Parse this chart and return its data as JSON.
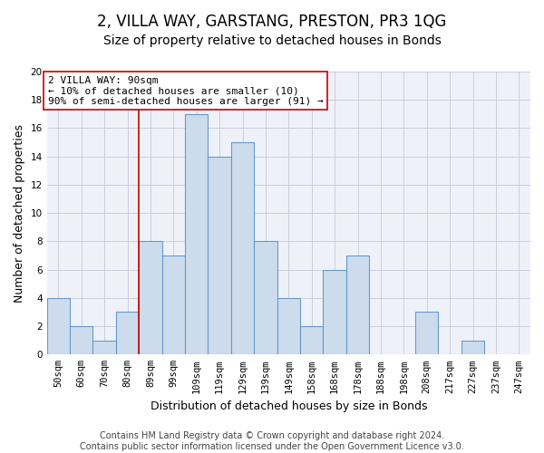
{
  "title": "2, VILLA WAY, GARSTANG, PRESTON, PR3 1QG",
  "subtitle": "Size of property relative to detached houses in Bonds",
  "xlabel": "Distribution of detached houses by size in Bonds",
  "ylabel": "Number of detached properties",
  "footer_line1": "Contains HM Land Registry data © Crown copyright and database right 2024.",
  "footer_line2": "Contains public sector information licensed under the Open Government Licence v3.0.",
  "bar_labels": [
    "50sqm",
    "60sqm",
    "70sqm",
    "80sqm",
    "89sqm",
    "99sqm",
    "109sqm",
    "119sqm",
    "129sqm",
    "139sqm",
    "149sqm",
    "158sqm",
    "168sqm",
    "178sqm",
    "188sqm",
    "198sqm",
    "208sqm",
    "217sqm",
    "227sqm",
    "237sqm",
    "247sqm"
  ],
  "bar_values": [
    4,
    2,
    1,
    3,
    8,
    7,
    17,
    14,
    15,
    8,
    4,
    2,
    6,
    7,
    0,
    0,
    3,
    0,
    1,
    0,
    0
  ],
  "bar_color": "#ccdcec",
  "bar_edge_color": "#6699cc",
  "bar_edge_width": 0.8,
  "vline_x_index": 4,
  "vline_color": "#cc0000",
  "vline_linewidth": 1.2,
  "annotation_text_line1": "2 VILLA WAY: 90sqm",
  "annotation_text_line2": "← 10% of detached houses are smaller (10)",
  "annotation_text_line3": "90% of semi-detached houses are larger (91) →",
  "ylim": [
    0,
    20
  ],
  "yticks": [
    0,
    2,
    4,
    6,
    8,
    10,
    12,
    14,
    16,
    18,
    20
  ],
  "grid_color": "#ccccdd",
  "background_color": "#ffffff",
  "plot_bg_color": "#eef2f8",
  "title_fontsize": 12,
  "subtitle_fontsize": 10,
  "ylabel_fontsize": 9,
  "xlabel_fontsize": 9,
  "tick_fontsize": 7.5,
  "annotation_fontsize": 8,
  "footer_fontsize": 7
}
